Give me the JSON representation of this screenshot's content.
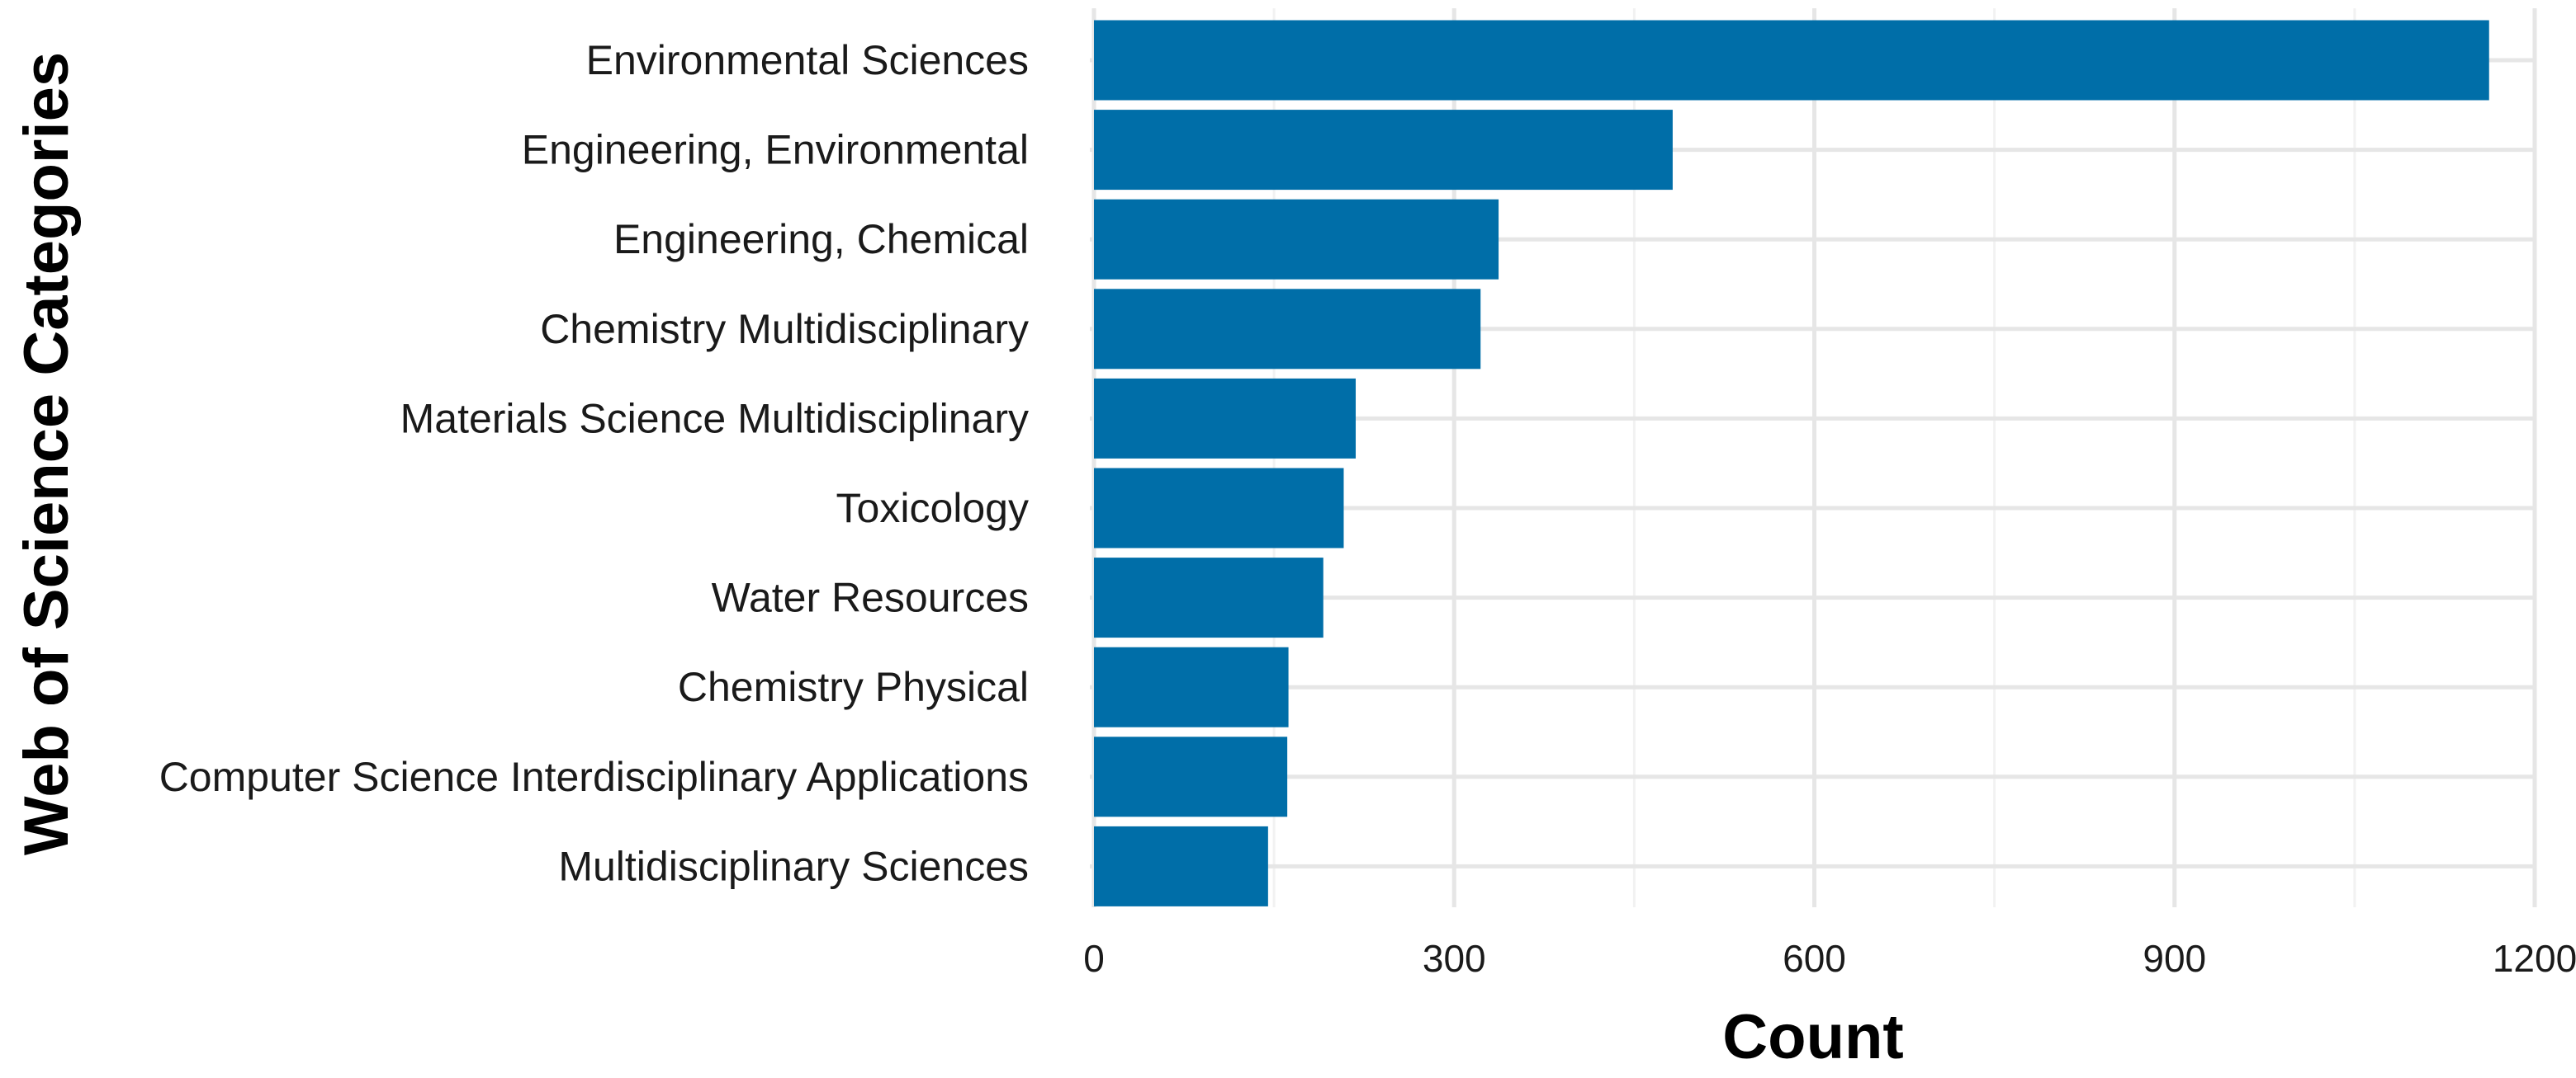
{
  "chart_data": {
    "type": "bar",
    "orientation": "horizontal",
    "categories": [
      "Environmental Sciences",
      "Engineering, Environmental",
      "Engineering, Chemical",
      "Chemistry Multidisciplinary",
      "Materials Science Multidisciplinary",
      "Toxicology",
      "Water Resources",
      "Chemistry Physical",
      "Computer Science Interdisciplinary Applications",
      "Multidisciplinary Sciences"
    ],
    "values": [
      1162,
      482,
      337,
      322,
      218,
      208,
      191,
      162,
      161,
      145
    ],
    "xlabel": "Count",
    "ylabel": "Web of Science Categories",
    "xlim": [
      0,
      1200
    ],
    "xticks": [
      0,
      300,
      600,
      900,
      1200
    ],
    "grid": true,
    "legend": "none",
    "bar_color": "#006ea8"
  }
}
